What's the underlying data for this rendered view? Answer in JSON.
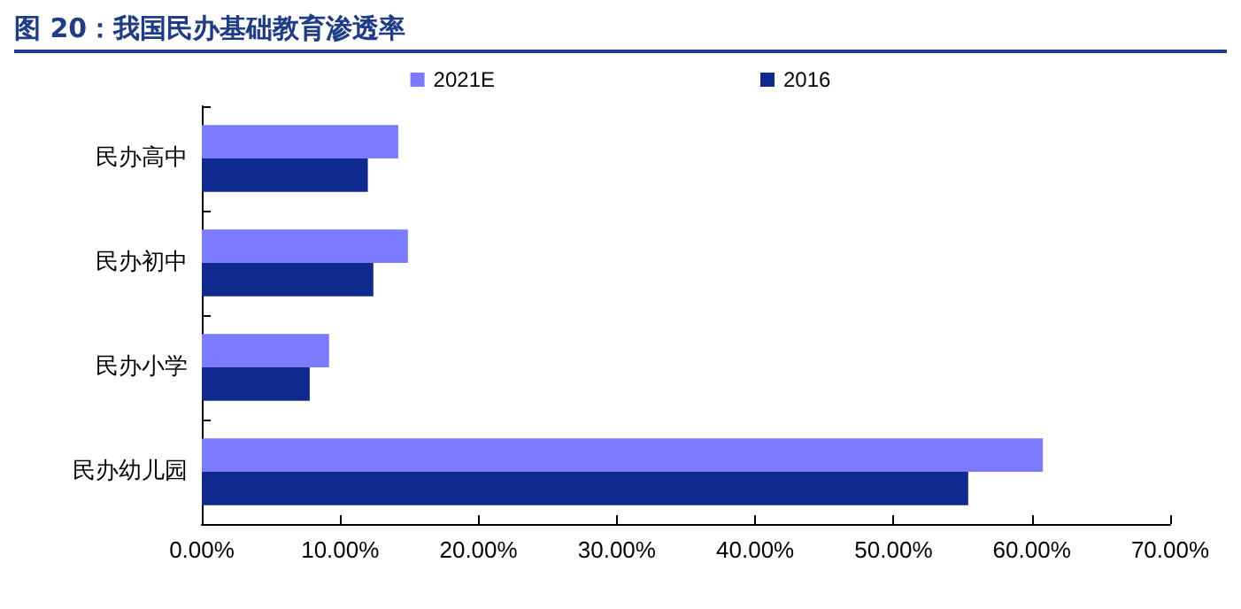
{
  "chart_data": {
    "type": "bar",
    "orientation": "horizontal",
    "title": "图 20：我国民办基础教育渗透率",
    "categories": [
      "民办高中",
      "民办初中",
      "民办小学",
      "民办幼儿园"
    ],
    "series": [
      {
        "name": "2021E",
        "color": "#7b7bff",
        "values": [
          14.2,
          14.9,
          9.2,
          60.8
        ]
      },
      {
        "name": "2016",
        "color": "#0e2a8f",
        "values": [
          12.0,
          12.4,
          7.8,
          55.4
        ]
      }
    ],
    "xlim": [
      0,
      70
    ],
    "xticks": [
      {
        "value": 0,
        "label": "0.00%"
      },
      {
        "value": 10,
        "label": "10.00%"
      },
      {
        "value": 20,
        "label": "20.00%"
      },
      {
        "value": 30,
        "label": "30.00%"
      },
      {
        "value": 40,
        "label": "40.00%"
      },
      {
        "value": 50,
        "label": "50.00%"
      },
      {
        "value": 60,
        "label": "60.00%"
      },
      {
        "value": 70,
        "label": "70.00%"
      }
    ],
    "grid": false,
    "legend": "top"
  }
}
